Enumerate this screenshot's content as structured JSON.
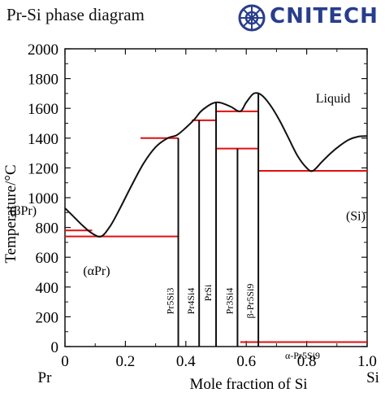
{
  "header": {
    "title": "Pr-Si phase diagram",
    "logo_text": "CNITECH"
  },
  "colors": {
    "boundary": "#111111",
    "phase_line": "#e01010",
    "logo": "#283d8c"
  },
  "chart_data": {
    "type": "line",
    "title": "Pr-Si phase diagram",
    "xlabel": "Mole fraction of Si",
    "ylabel": "Temperature/°C",
    "xlim": [
      0,
      1.0
    ],
    "ylim": [
      0,
      2000
    ],
    "x_ticks": [
      0,
      0.2,
      0.4,
      0.6,
      0.8,
      1.0
    ],
    "x_tick_labels": [
      "0",
      "0.2",
      "0.4",
      "0.6",
      "0.8",
      "1.0"
    ],
    "y_ticks": [
      0,
      200,
      400,
      600,
      800,
      1000,
      1200,
      1400,
      1600,
      1800,
      2000
    ],
    "y_tick_labels": [
      "0",
      "200",
      "400",
      "600",
      "800",
      "1000",
      "1200",
      "1400",
      "1600",
      "1800",
      "2000"
    ],
    "grid": false,
    "left_element": "Pr",
    "right_element": "Si",
    "liquidus": {
      "x": [
        0,
        0.03,
        0.06,
        0.09,
        0.12,
        0.15,
        0.18,
        0.22,
        0.26,
        0.3,
        0.34,
        0.37,
        0.4,
        0.43,
        0.45,
        0.48,
        0.5,
        0.52,
        0.55,
        0.58,
        0.6,
        0.625,
        0.65,
        0.68,
        0.71,
        0.74,
        0.77,
        0.8,
        0.82,
        0.85,
        0.88,
        0.91,
        0.94,
        0.97,
        1.0
      ],
      "y": [
        930,
        870,
        810,
        760,
        740,
        810,
        920,
        1080,
        1230,
        1340,
        1400,
        1420,
        1470,
        1530,
        1580,
        1625,
        1640,
        1635,
        1610,
        1580,
        1640,
        1700,
        1690,
        1620,
        1520,
        1400,
        1280,
        1200,
        1180,
        1240,
        1300,
        1350,
        1390,
        1410,
        1414
      ]
    },
    "compound_lines": [
      {
        "x": 0.375,
        "y_top": 1400,
        "label": "Pr5Si3"
      },
      {
        "x": 0.444,
        "y_top": 1520,
        "label": "Pr4Si4"
      },
      {
        "x": 0.5,
        "y_top": 1640,
        "label": "PrSi"
      },
      {
        "x": 0.571,
        "y_top": 1330,
        "label": "Pr3Si4"
      },
      {
        "x": 0.64,
        "y_top": 1700,
        "label": "β-Pr5Si9"
      }
    ],
    "horizontal_lines": [
      {
        "x0": 0.0,
        "x1": 0.09,
        "y": 780
      },
      {
        "x0": 0.0,
        "x1": 0.375,
        "y": 740
      },
      {
        "x0": 0.25,
        "x1": 0.375,
        "y": 1400
      },
      {
        "x0": 0.42,
        "x1": 0.5,
        "y": 1520
      },
      {
        "x0": 0.5,
        "x1": 0.64,
        "y": 1580
      },
      {
        "x0": 0.5,
        "x1": 0.64,
        "y": 1330
      },
      {
        "x0": 0.64,
        "x1": 1.0,
        "y": 1180
      },
      {
        "x0": 0.58,
        "x1": 1.0,
        "y": 30
      }
    ],
    "annotations": [
      {
        "text": "Liquid",
        "x": 0.83,
        "y": 1640
      },
      {
        "text": "(βPr)",
        "x": -0.12,
        "y": 910
      },
      {
        "text": "(αPr)",
        "x": 0.06,
        "y": 480
      },
      {
        "text": "(Si)",
        "x": 0.93,
        "y": 850
      },
      {
        "text": "α-Pr5Si9",
        "x": 0.7,
        "y": -60
      }
    ]
  }
}
